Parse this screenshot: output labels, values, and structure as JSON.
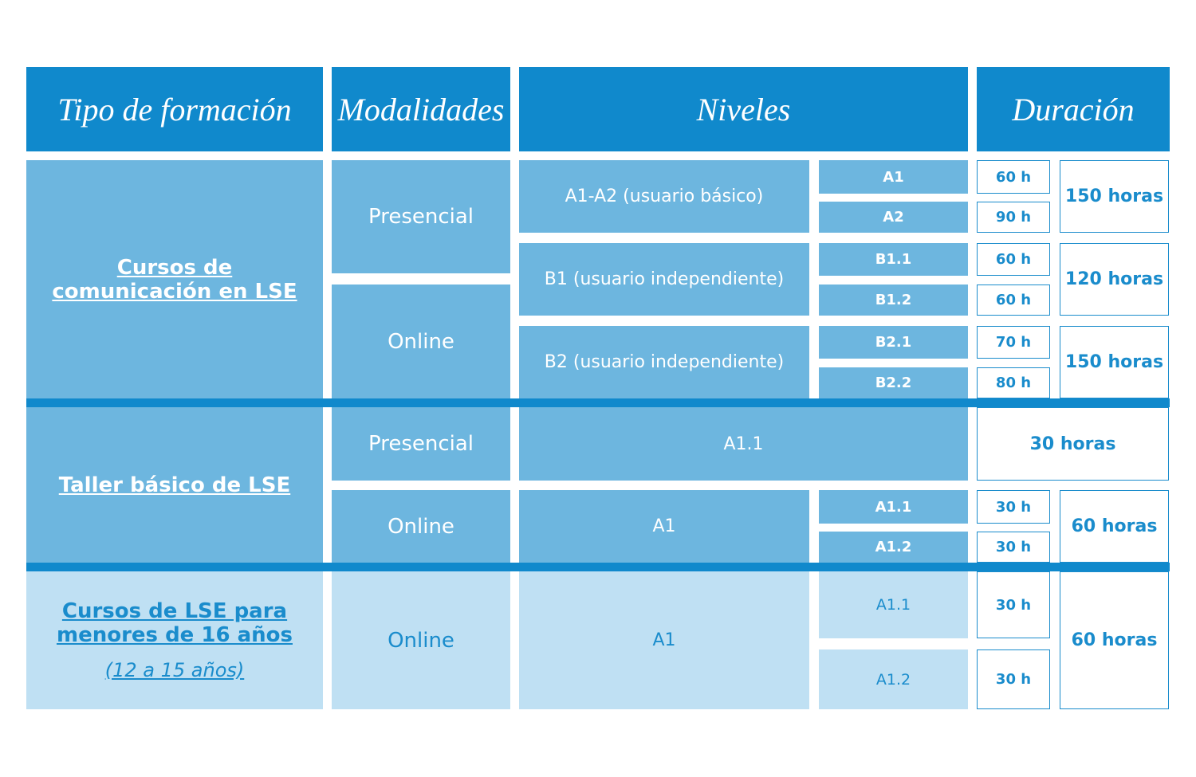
{
  "header": {
    "columns": [
      "Tipo de formación",
      "Modalidades",
      "Niveles",
      "Duración"
    ]
  },
  "sections": [
    {
      "title": "Cursos de comunicación en LSE",
      "modalities": [
        "Presencial",
        "Online"
      ],
      "levels": [
        {
          "name": "A1-A2 (usuario básico)",
          "total": "150 horas",
          "sublevels": [
            {
              "level": "A1",
              "hours": "60 h"
            },
            {
              "level": "A2",
              "hours": "90 h"
            }
          ]
        },
        {
          "name": "B1 (usuario independiente)",
          "total": "120 horas",
          "sublevels": [
            {
              "level": "B1.1",
              "hours": "60 h"
            },
            {
              "level": "B1.2",
              "hours": "60 h"
            }
          ]
        },
        {
          "name": "B2 (usuario independiente)",
          "total": "150 horas",
          "sublevels": [
            {
              "level": "B2.1",
              "hours": "70 h"
            },
            {
              "level": "B2.2",
              "hours": "80 h"
            }
          ]
        }
      ]
    },
    {
      "title": "Taller básico de LSE",
      "rows": [
        {
          "modality": "Presencial",
          "level": "A1.1",
          "total": "30 horas"
        },
        {
          "modality": "Online",
          "level": "A1",
          "total": "60 horas",
          "sublevels": [
            {
              "level": "A1.1",
              "hours": "30 h"
            },
            {
              "level": "A1.2",
              "hours": "30 h"
            }
          ]
        }
      ]
    },
    {
      "title": "Cursos de LSE para menores de 16 años",
      "note": "(12 a 15 años)",
      "modality": "Online",
      "level": "A1",
      "total": "60 horas",
      "sublevels": [
        {
          "level": "A1.1",
          "hours": "30 h"
        },
        {
          "level": "A1.2",
          "hours": "30 h"
        }
      ]
    }
  ]
}
